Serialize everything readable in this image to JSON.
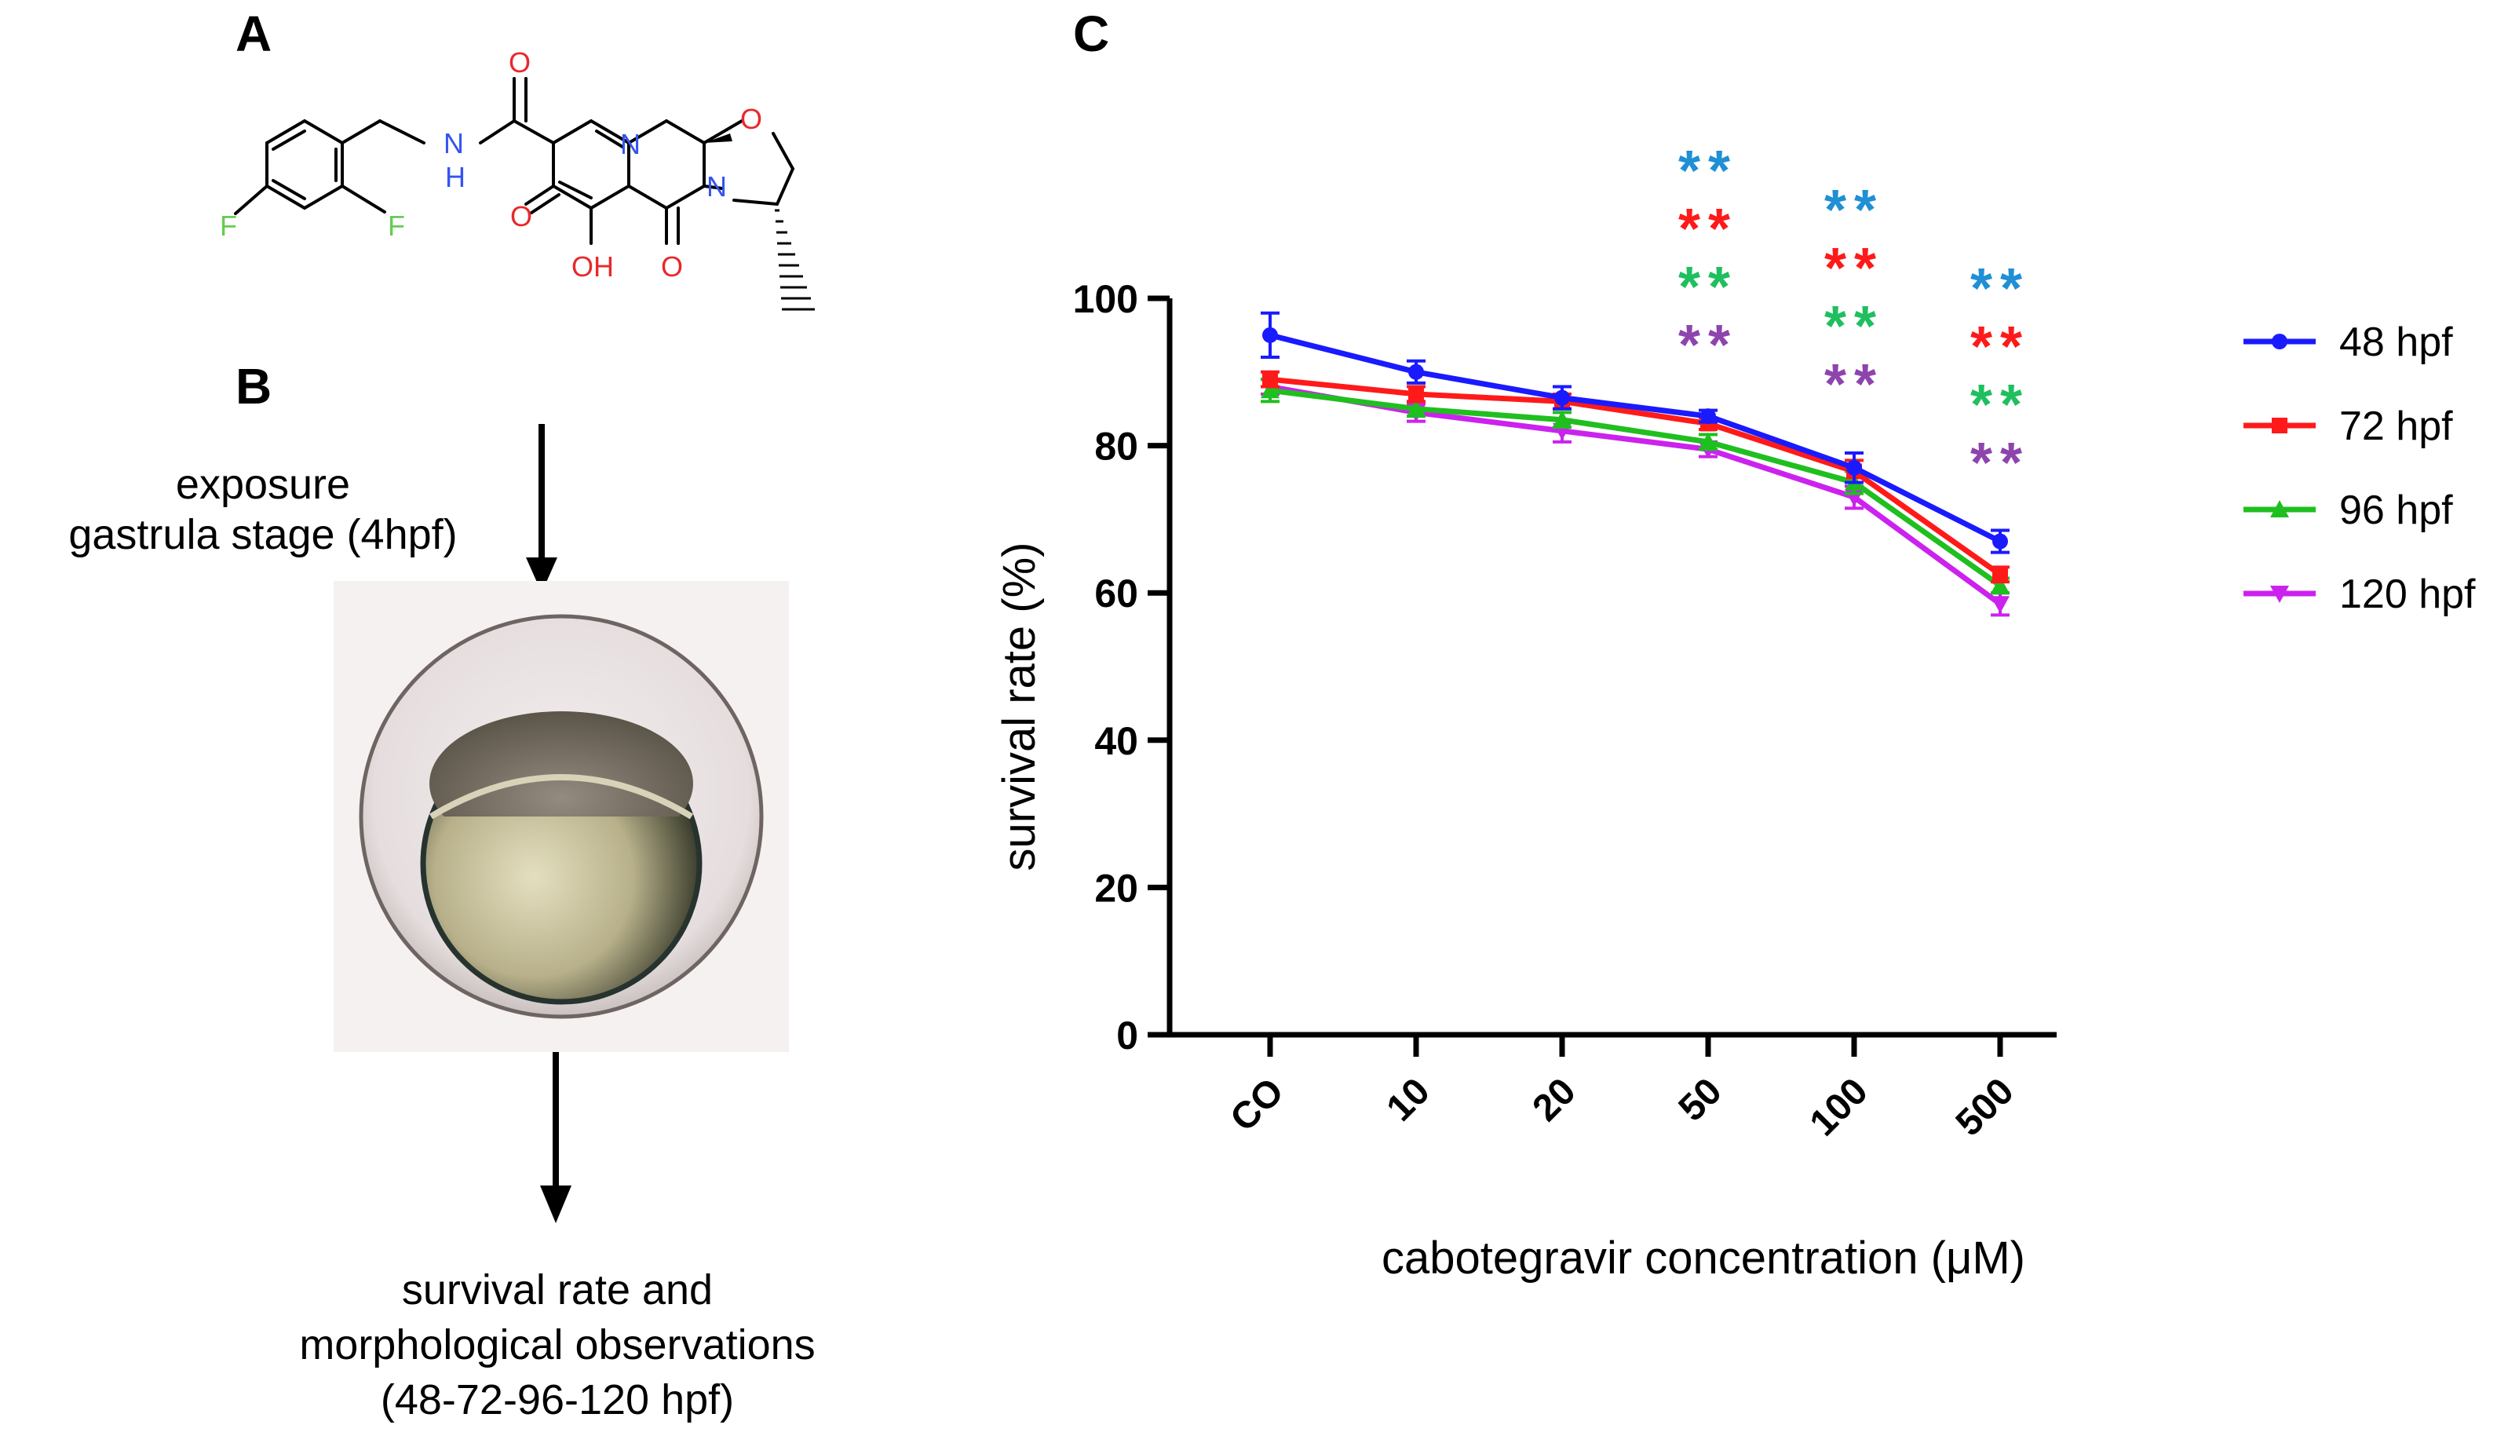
{
  "panels": {
    "a": "A",
    "b": "B",
    "c": "C"
  },
  "structure": {
    "atoms": {
      "o1": "O",
      "nh": "N",
      "h": "H",
      "n_ring": "N",
      "o_ring": "O",
      "n2": "N",
      "o_ketone": "O",
      "oh": "OH",
      "o_amide": "O",
      "f1": "F",
      "f2": "F"
    }
  },
  "flow": {
    "step1_line1": "exposure",
    "step1_line2": "gastrula stage (4hpf)",
    "step2_line1": "survival rate and",
    "step2_line2": "morphological observations",
    "step2_line3": "(48-72-96-120 hpf)"
  },
  "chart_data": {
    "type": "line",
    "xlabel": "cabotegravir concentration (μM)",
    "ylabel": "survival rate (%)",
    "categories": [
      "CO",
      "10",
      "20",
      "50",
      "100",
      "500"
    ],
    "ylim": [
      0,
      100
    ],
    "yticks": [
      "0",
      "20",
      "40",
      "60",
      "80",
      "100"
    ],
    "grid": false,
    "legend_position": "right",
    "series": [
      {
        "name": "48 hpf",
        "color": "#1a1aff",
        "marker": "circle",
        "values": [
          95,
          90,
          86.5,
          84,
          77,
          67
        ],
        "errors": [
          3,
          1.5,
          1.5,
          0.8,
          2,
          1.5
        ]
      },
      {
        "name": "72 hpf",
        "color": "#ff1a1a",
        "marker": "square",
        "values": [
          89,
          87,
          86,
          83,
          76.5,
          62.5
        ],
        "errors": [
          1,
          1,
          1,
          0.8,
          1.5,
          1
        ]
      },
      {
        "name": "96 hpf",
        "color": "#1fbf1f",
        "marker": "triangle-up",
        "values": [
          87.5,
          85,
          83.5,
          80.5,
          75,
          61
        ],
        "errors": [
          1.5,
          1,
          1,
          1,
          1.5,
          1
        ]
      },
      {
        "name": "120 hpf",
        "color": "#cc22ee",
        "marker": "triangle-down",
        "values": [
          88,
          84.5,
          82,
          79.5,
          73,
          58.5
        ],
        "errors": [
          1,
          1.2,
          1.5,
          1,
          1.5,
          1.5
        ]
      }
    ],
    "significance": {
      "symbol": "**",
      "categories": [
        "50",
        "100",
        "500"
      ],
      "colors": [
        "#1f8fd6",
        "#ff1a1a",
        "#1fbf5f",
        "#8e44ad"
      ]
    }
  }
}
